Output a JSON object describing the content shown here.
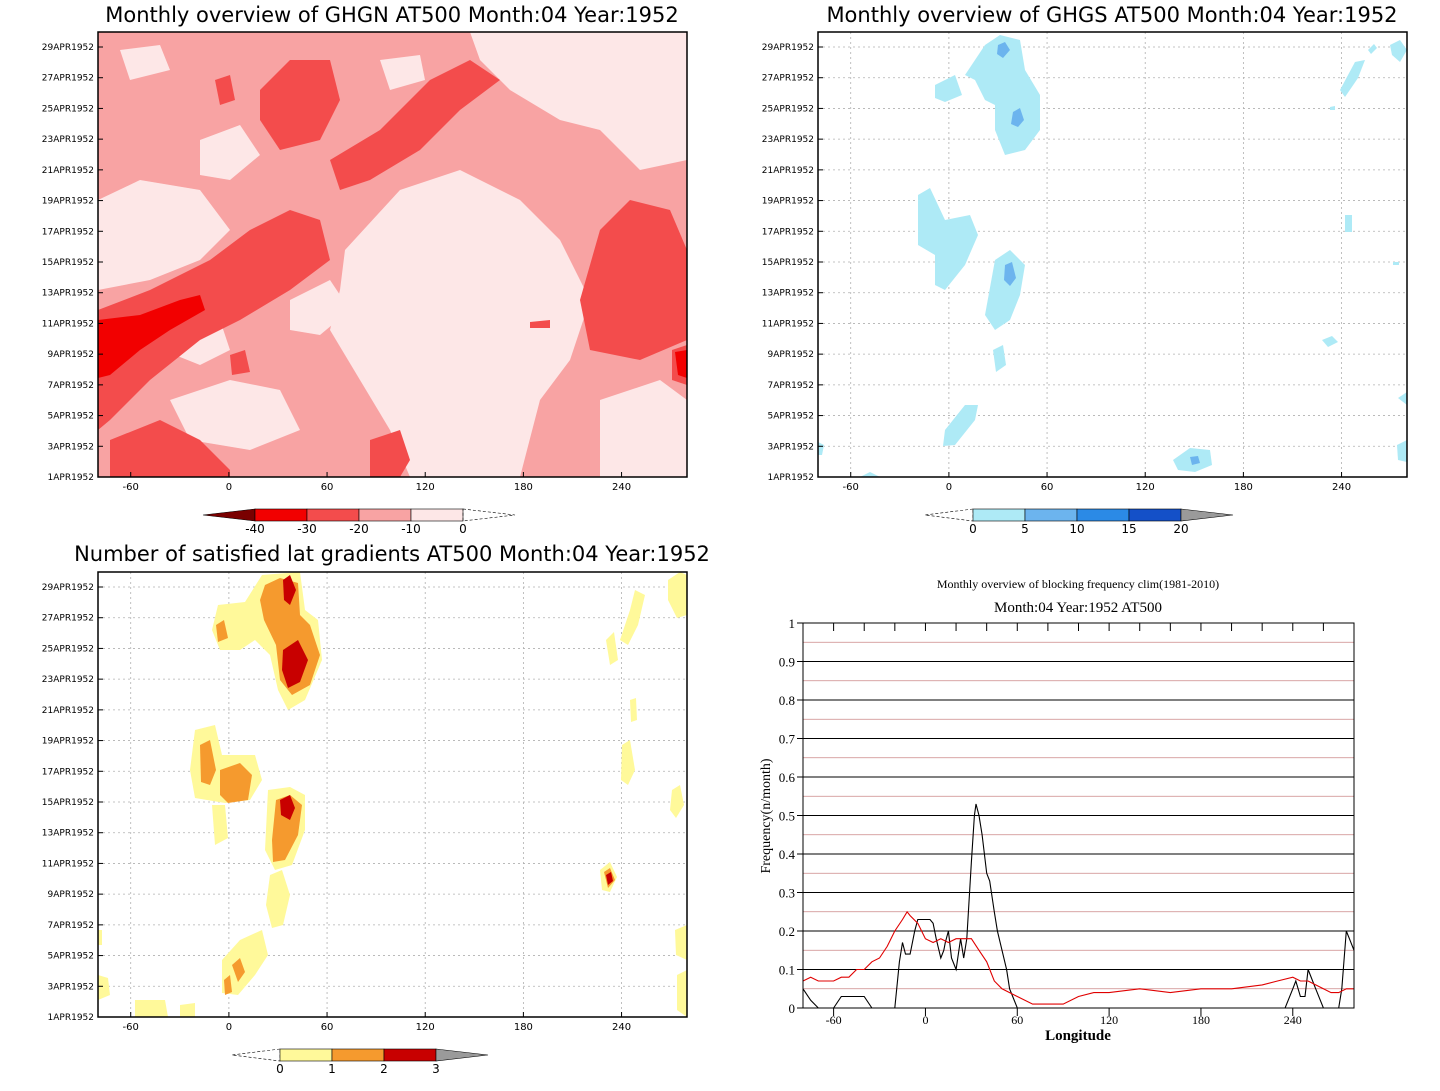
{
  "chart_data": [
    {
      "type": "heatmap",
      "title": "Monthly overview of GHGN AT500 Month:04 Year:1952",
      "x_ticks": [
        -60,
        0,
        60,
        120,
        180,
        240
      ],
      "x_range": [
        -80,
        280
      ],
      "y_ticks": [
        "1APR1952",
        "3APR1952",
        "5APR1952",
        "7APR1952",
        "9APR1952",
        "11APR1952",
        "13APR1952",
        "15APR1952",
        "17APR1952",
        "19APR1952",
        "21APR1952",
        "23APR1952",
        "25APR1952",
        "27APR1952",
        "29APR1952"
      ],
      "colorbar": {
        "ticks": [
          -40,
          -30,
          -20,
          -10,
          0
        ],
        "colors": [
          "#7a0000",
          "#f20000",
          "#f34c4c",
          "#f8a3a3",
          "#fde7e7"
        ]
      },
      "background": "#f8a3a3"
    },
    {
      "type": "heatmap",
      "title": "Monthly overview of GHGS AT500 Month:04 Year:1952",
      "x_ticks": [
        -60,
        0,
        60,
        120,
        180,
        240
      ],
      "x_range": [
        -80,
        280
      ],
      "y_ticks": [
        "1APR1952",
        "3APR1952",
        "5APR1952",
        "7APR1952",
        "9APR1952",
        "11APR1952",
        "13APR1952",
        "15APR1952",
        "17APR1952",
        "19APR1952",
        "21APR1952",
        "23APR1952",
        "25APR1952",
        "27APR1952",
        "29APR1952"
      ],
      "colorbar": {
        "ticks": [
          0,
          5,
          10,
          15,
          20
        ],
        "colors": [
          "#aeeaf6",
          "#6cb4ee",
          "#2b8ae6",
          "#1450c8",
          "#9a9a9a"
        ]
      },
      "grid": true
    },
    {
      "type": "heatmap",
      "title": "Number of satisfied lat gradients AT500 Month:04 Year:1952",
      "x_ticks": [
        -60,
        0,
        60,
        120,
        180,
        240
      ],
      "x_range": [
        -80,
        280
      ],
      "y_ticks": [
        "1APR1952",
        "3APR1952",
        "5APR1952",
        "7APR1952",
        "9APR1952",
        "11APR1952",
        "13APR1952",
        "15APR1952",
        "17APR1952",
        "19APR1952",
        "21APR1952",
        "23APR1952",
        "25APR1952",
        "27APR1952",
        "29APR1952"
      ],
      "colorbar": {
        "ticks": [
          0,
          1,
          2,
          3
        ],
        "colors": [
          "#fff99a",
          "#f59a2e",
          "#c80000",
          "#9a9a9a"
        ]
      },
      "grid": true
    },
    {
      "type": "line",
      "title": "Monthly overview of blocking frequency clim(1981-2010)",
      "subtitle": "Month:04 Year:1952  AT500",
      "xlabel": "Longitude",
      "ylabel": "Frequency(n/month)",
      "xlim": [
        -80,
        280
      ],
      "ylim": [
        0,
        1
      ],
      "x_ticks": [
        -60,
        0,
        60,
        120,
        180,
        240
      ],
      "y_ticks": [
        "0",
        "0.1",
        "0.2",
        "0.3",
        "0.4",
        "0.5",
        "0.6",
        "0.7",
        "0.8",
        "0.9",
        "1"
      ],
      "grid": true,
      "series": [
        {
          "color": "#000000",
          "x": [
            -80,
            -75,
            -70,
            -65,
            -60,
            -55,
            -50,
            -45,
            -40,
            -35,
            -30,
            -25,
            -20,
            -17,
            -15,
            -13,
            -10,
            -7,
            -5,
            -3,
            0,
            3,
            5,
            7,
            10,
            12,
            13,
            15,
            17,
            20,
            23,
            25,
            27,
            30,
            32,
            33,
            35,
            37,
            40,
            42,
            45,
            47,
            50,
            53,
            55,
            57,
            60,
            65,
            70,
            75,
            80,
            100,
            150,
            200,
            220,
            225,
            230,
            233,
            235,
            240,
            242,
            245,
            248,
            250,
            255,
            260,
            265,
            270,
            272,
            275,
            277,
            280
          ],
          "y": [
            0.05,
            0.02,
            0,
            0,
            0,
            0.03,
            0.03,
            0.03,
            0.03,
            0,
            0,
            0,
            0,
            0.12,
            0.17,
            0.14,
            0.14,
            0.2,
            0.23,
            0.23,
            0.23,
            0.23,
            0.22,
            0.18,
            0.13,
            0.15,
            0.17,
            0.2,
            0.13,
            0.1,
            0.18,
            0.13,
            0.18,
            0.38,
            0.5,
            0.53,
            0.5,
            0.45,
            0.35,
            0.33,
            0.25,
            0.2,
            0.15,
            0.1,
            0.05,
            0.03,
            0,
            0,
            0,
            0,
            0,
            0,
            0,
            0,
            0,
            0,
            0,
            0,
            0,
            0.05,
            0.07,
            0.03,
            0.03,
            0.1,
            0.05,
            0,
            0,
            0,
            0.05,
            0.2,
            0.18,
            0.15
          ]
        },
        {
          "color": "#e00000",
          "x": [
            -80,
            -75,
            -70,
            -65,
            -60,
            -55,
            -50,
            -45,
            -40,
            -35,
            -30,
            -25,
            -20,
            -15,
            -12,
            -10,
            -5,
            0,
            5,
            10,
            15,
            20,
            25,
            30,
            35,
            40,
            45,
            50,
            55,
            60,
            70,
            80,
            90,
            100,
            110,
            120,
            140,
            160,
            180,
            200,
            220,
            230,
            240,
            245,
            250,
            255,
            260,
            265,
            270,
            275,
            280
          ],
          "y": [
            0.07,
            0.08,
            0.07,
            0.07,
            0.07,
            0.08,
            0.08,
            0.1,
            0.1,
            0.12,
            0.13,
            0.16,
            0.2,
            0.23,
            0.25,
            0.24,
            0.22,
            0.18,
            0.17,
            0.18,
            0.17,
            0.18,
            0.18,
            0.18,
            0.15,
            0.12,
            0.07,
            0.05,
            0.04,
            0.03,
            0.01,
            0.01,
            0.01,
            0.03,
            0.04,
            0.04,
            0.05,
            0.04,
            0.05,
            0.05,
            0.06,
            0.07,
            0.08,
            0.07,
            0.07,
            0.06,
            0.05,
            0.04,
            0.04,
            0.05,
            0.05
          ]
        }
      ]
    }
  ]
}
